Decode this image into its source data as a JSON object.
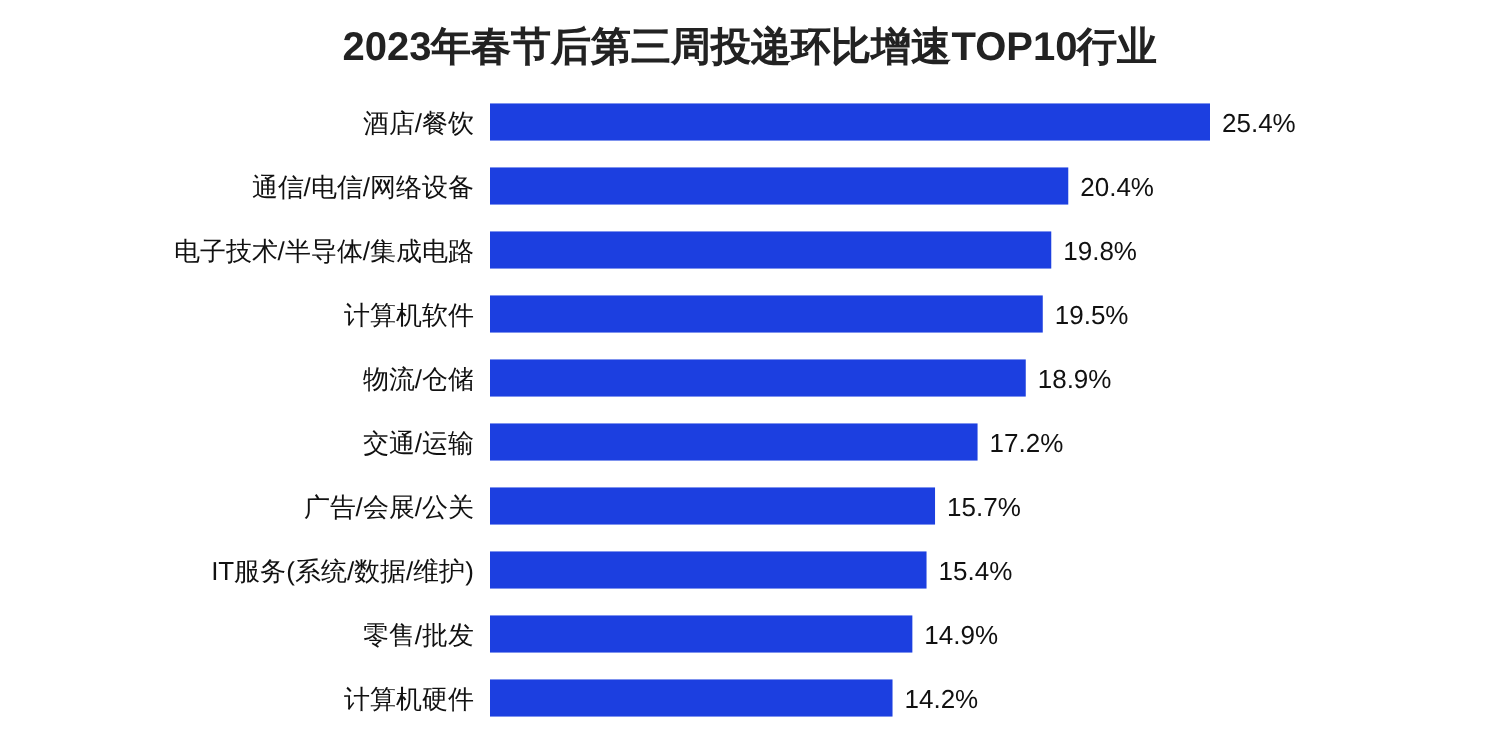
{
  "chart_data": {
    "type": "bar",
    "orientation": "horizontal",
    "title": "2023年春节后第三周投递环比增速TOP10行业",
    "categories": [
      "酒店/餐饮",
      "通信/电信/网络设备",
      "电子技术/半导体/集成电路",
      "计算机软件",
      "物流/仓储",
      "交通/运输",
      "广告/会展/公关",
      "IT服务(系统/数据/维护)",
      "零售/批发",
      "计算机硬件"
    ],
    "values": [
      25.4,
      20.4,
      19.8,
      19.5,
      18.9,
      17.2,
      15.7,
      15.4,
      14.9,
      14.2
    ],
    "value_labels": [
      "25.4%",
      "20.4%",
      "19.8%",
      "19.5%",
      "18.9%",
      "17.2%",
      "15.7%",
      "15.4%",
      "14.9%",
      "14.2%"
    ],
    "color": "#1c3fe0"
  }
}
